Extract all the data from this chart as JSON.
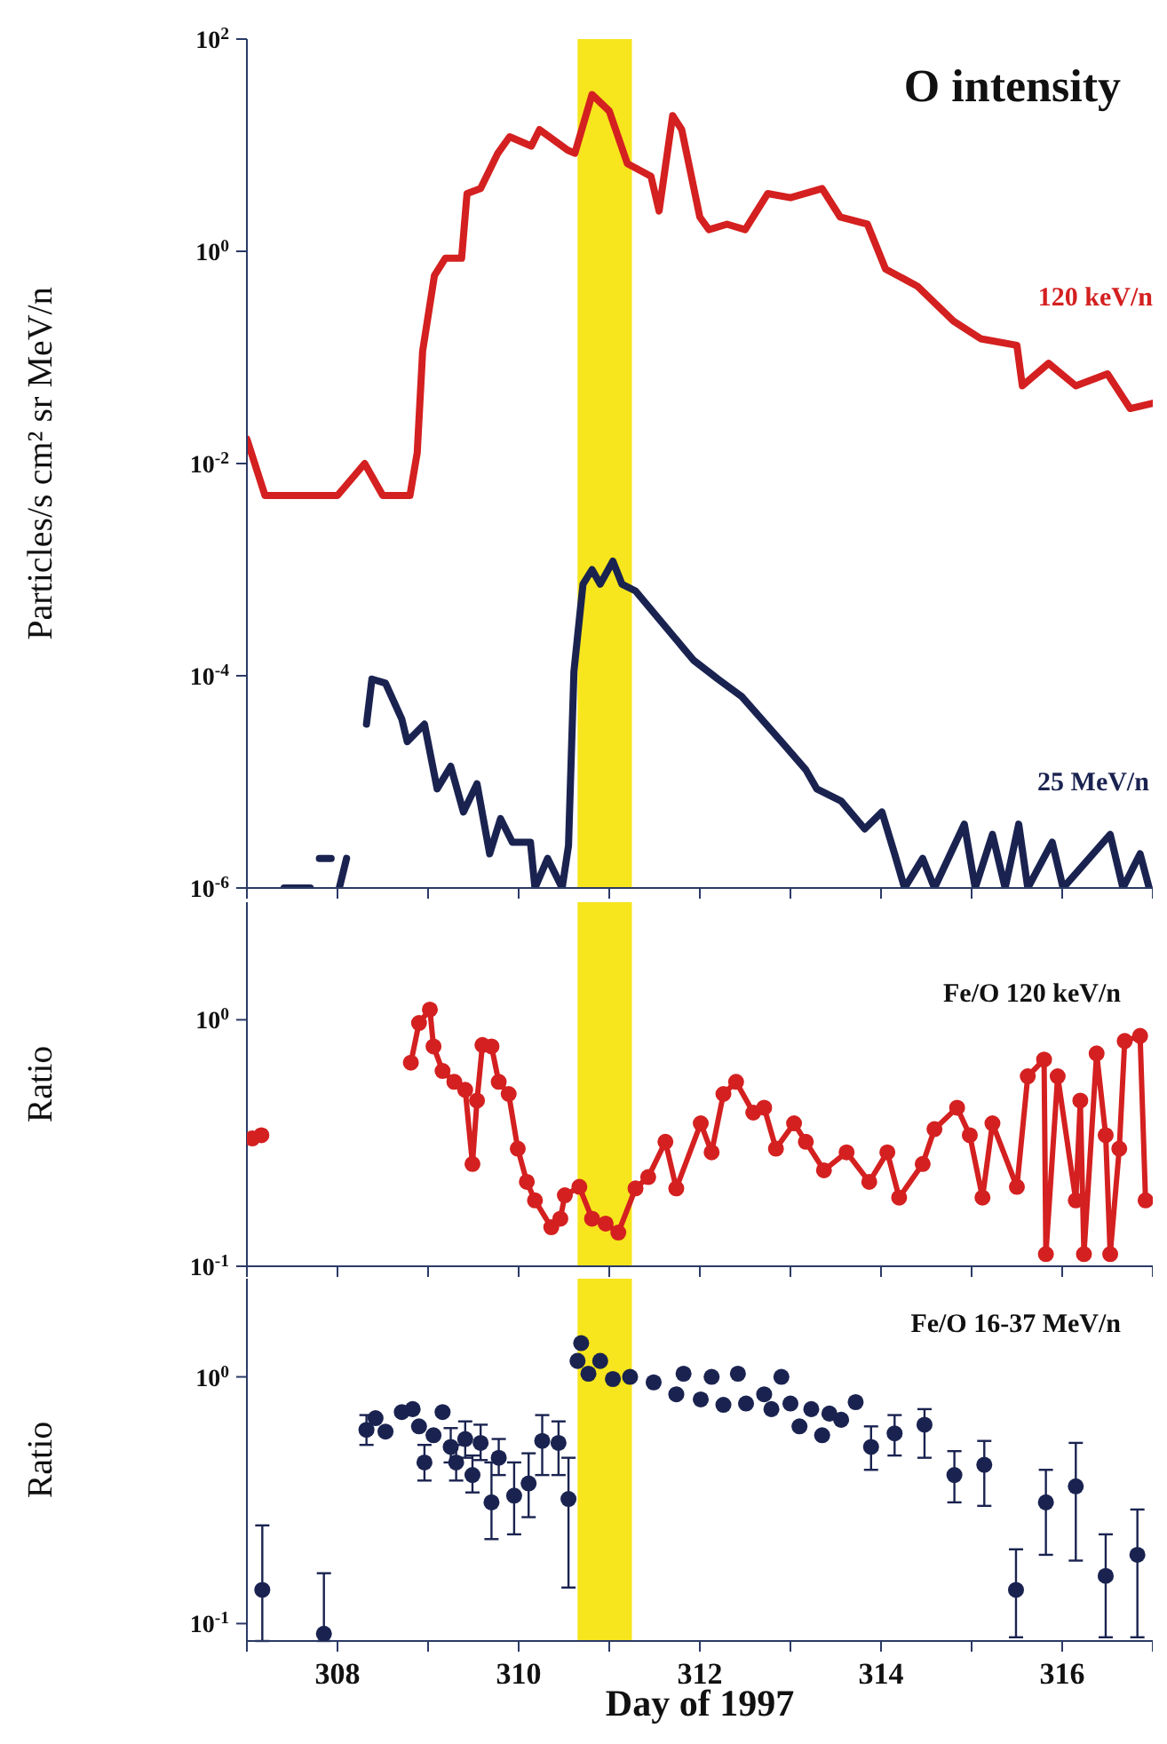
{
  "chart_data": [
    {
      "type": "line",
      "title": "O intensity",
      "ylabel": "Particles/s cm² sr MeV/n",
      "log": "y",
      "xlim": [
        307,
        317
      ],
      "xticks": [
        {
          "value": 307,
          "label": null
        },
        308,
        {
          "value": 309,
          "label": null
        },
        310,
        {
          "value": 311,
          "label": null
        },
        312,
        {
          "value": 313,
          "label": null
        },
        314,
        {
          "value": 315,
          "label": null
        },
        316,
        {
          "value": 317,
          "label": null
        }
      ],
      "tick_labels": "y",
      "ylim": [
        1e-06,
        100
      ],
      "yticks": [
        {
          "value": 1e-06,
          "label": "10$^{-6}$"
        },
        {
          "value": 0.0001,
          "label": "10$^{-4}$"
        },
        {
          "value": 0.01,
          "label": "10$^{-2}$"
        },
        {
          "value": 1,
          "label": "10$^{0}$"
        },
        {
          "value": 100,
          "label": "10$^{2}$"
        }
      ],
      "marker": "none",
      "line_style": "solid",
      "bands": [
        {
          "axis": "x",
          "from": 310.65,
          "to": 311.25,
          "color": "#f7e51e"
        }
      ],
      "series": [
        {
          "name": "120 keV/n",
          "color": "#d42020",
          "x": [
            307.0,
            307.2,
            307.5,
            308.0,
            308.3,
            308.5,
            308.8,
            308.88,
            308.94,
            309.07,
            309.19,
            309.37,
            309.43,
            309.58,
            309.77,
            309.9,
            310.14,
            310.23,
            310.54,
            310.62,
            310.81,
            311.0,
            311.2,
            311.46,
            311.55,
            311.7,
            311.8,
            312.0,
            312.1,
            312.3,
            312.5,
            312.75,
            313.0,
            313.35,
            313.55,
            313.85,
            314.05,
            314.4,
            314.8,
            315.1,
            315.5,
            315.56,
            315.85,
            316.15,
            316.5,
            316.75,
            317.0
          ],
          "values": [
            0.017,
            0.005,
            0.005,
            0.005,
            0.01,
            0.005,
            0.005,
            0.0126,
            0.115,
            0.59,
            0.86,
            0.86,
            3.5,
            3.9,
            8.4,
            12,
            9.8,
            14,
            9,
            8.4,
            30,
            21,
            6.7,
            5.1,
            2.4,
            19,
            14,
            2.1,
            1.6,
            1.8,
            1.6,
            3.5,
            3.2,
            3.9,
            2.1,
            1.8,
            0.68,
            0.47,
            0.22,
            0.15,
            0.13,
            0.054,
            0.088,
            0.054,
            0.07,
            0.033,
            0.037
          ]
        },
        {
          "name": "25 MeV/n",
          "color": "#1a2350",
          "x": [
            307.41,
            307.7,
            307.75,
            307.8,
            307.93,
            307.99,
            308.02,
            308.1,
            308.2,
            308.32,
            308.38,
            308.53,
            308.71,
            308.77,
            308.96,
            309.1,
            309.25,
            309.39,
            309.54,
            309.68,
            309.8,
            309.93,
            310.13,
            310.18,
            310.32,
            310.48,
            310.55,
            310.61,
            310.71,
            310.81,
            310.9,
            311.04,
            311.14,
            311.29,
            311.62,
            311.93,
            312.2,
            312.46,
            312.9,
            313.17,
            313.29,
            313.56,
            313.82,
            314.01,
            314.15,
            314.26,
            314.46,
            314.59,
            314.92,
            315.04,
            315.23,
            315.37,
            315.52,
            315.62,
            315.89,
            316.01,
            316.53,
            316.67,
            316.86,
            316.96
          ],
          "values": [
            1e-06,
            1e-06,
            null,
            1.9e-06,
            1.9e-06,
            null,
            1e-06,
            1.9e-06,
            null,
            3.5e-05,
            9.3e-05,
            8.5e-05,
            3.9e-05,
            2.4e-05,
            3.5e-05,
            8.6e-06,
            1.4e-05,
            5.2e-06,
            9.6e-06,
            2.1e-06,
            4.5e-06,
            2.7e-06,
            2.7e-06,
            1e-06,
            1.9e-06,
            1e-06,
            2.5e-06,
            0.00011,
            0.00073,
            0.001,
            0.00073,
            0.0012,
            0.00073,
            0.00063,
            0.00029,
            0.00014,
            9.3e-05,
            6.4e-05,
            2.4e-05,
            1.3e-05,
            8.6e-06,
            6.6e-06,
            3.6e-06,
            5.2e-06,
            2.1e-06,
            1e-06,
            1.9e-06,
            1e-06,
            4e-06,
            1e-06,
            3.2e-06,
            1e-06,
            4e-06,
            1e-06,
            2.7e-06,
            1e-06,
            3.2e-06,
            1e-06,
            2.1e-06,
            1e-06
          ]
        }
      ]
    },
    {
      "type": "line",
      "title": "Fe/O 120 keV/n",
      "ylabel": "Ratio",
      "log": "y",
      "xlim": [
        307,
        317
      ],
      "xticks": [
        {
          "value": 307,
          "label": null
        },
        308,
        {
          "value": 309,
          "label": null
        },
        310,
        {
          "value": 311,
          "label": null
        },
        312,
        {
          "value": 313,
          "label": null
        },
        314,
        {
          "value": 315,
          "label": null
        },
        316,
        {
          "value": 317,
          "label": null
        }
      ],
      "tick_labels": "y",
      "ylim": [
        0.1,
        3
      ],
      "yticks": [
        {
          "value": 0.1,
          "label": "10$^{-1}$"
        },
        {
          "value": 1,
          "label": "10$^{0}$"
        }
      ],
      "marker": "circle",
      "line_style": "solid",
      "bands": [
        {
          "axis": "x",
          "from": 310.65,
          "to": 311.25,
          "color": "#f7e51e"
        }
      ],
      "series": [
        {
          "color": "#d42020",
          "x": [
            307.06,
            307.16,
            307.2,
            308.81,
            308.9,
            309.02,
            309.06,
            309.16,
            309.29,
            309.41,
            309.49,
            309.54,
            309.6,
            309.7,
            309.78,
            309.89,
            309.99,
            310.09,
            310.18,
            310.36,
            310.46,
            310.51,
            310.67,
            310.81,
            310.96,
            311.1,
            311.29,
            311.43,
            311.62,
            311.74,
            312.01,
            312.13,
            312.26,
            312.4,
            312.59,
            312.71,
            312.84,
            313.04,
            313.17,
            313.37,
            313.62,
            313.87,
            314.07,
            314.2,
            314.46,
            314.59,
            314.84,
            314.98,
            315.12,
            315.23,
            315.5,
            315.62,
            315.8,
            315.82,
            315.95,
            316.15,
            316.2,
            316.24,
            316.38,
            316.48,
            316.53,
            316.63,
            316.69,
            316.86,
            316.92
          ],
          "values": [
            0.33,
            0.34,
            null,
            0.67,
            0.97,
            1.1,
            0.78,
            0.62,
            0.56,
            0.52,
            0.26,
            0.47,
            0.79,
            0.78,
            0.56,
            0.5,
            0.3,
            0.22,
            0.185,
            0.144,
            0.156,
            0.194,
            0.21,
            0.156,
            0.149,
            0.137,
            0.207,
            0.23,
            0.32,
            0.207,
            0.38,
            0.29,
            0.5,
            0.56,
            0.42,
            0.44,
            0.3,
            0.38,
            0.32,
            0.245,
            0.29,
            0.22,
            0.29,
            0.19,
            0.26,
            0.36,
            0.44,
            0.34,
            0.19,
            0.38,
            0.21,
            0.59,
            0.69,
            0.112,
            0.59,
            0.185,
            0.47,
            0.112,
            0.73,
            0.34,
            0.112,
            0.3,
            0.82,
            0.86,
            0.185
          ]
        }
      ]
    },
    {
      "type": "scatter",
      "title": "Fe/O 16-37 MeV/n",
      "ylabel": "Ratio",
      "xlabel": "Day of 1997",
      "log": "y",
      "xlim": [
        307,
        317
      ],
      "xticks": [
        {
          "value": 307,
          "label": null
        },
        308,
        {
          "value": 309,
          "label": null
        },
        310,
        {
          "value": 311,
          "label": null
        },
        312,
        {
          "value": 313,
          "label": null
        },
        314,
        {
          "value": 315,
          "label": null
        },
        316,
        {
          "value": 317,
          "label": null
        }
      ],
      "ylim": [
        0.085,
        2.5
      ],
      "yticks": [
        {
          "value": 0.1,
          "label": "10$^{-1}$"
        },
        {
          "value": 1,
          "label": "10$^{0}$"
        }
      ],
      "marker": "circle",
      "bands": [
        {
          "axis": "x",
          "from": 310.65,
          "to": 311.25,
          "color": "#f7e51e"
        }
      ],
      "series": [
        {
          "color": "#1a2350",
          "x": [
            307.17,
            307.85,
            308.32,
            308.42,
            308.53,
            308.71,
            308.83,
            308.9,
            308.96,
            309.06,
            309.16,
            309.25,
            309.31,
            309.41,
            309.49,
            309.58,
            309.7,
            309.78,
            309.95,
            310.11,
            310.26,
            310.44,
            310.55,
            310.65,
            310.69,
            310.77,
            310.9,
            311.04,
            311.23,
            311.49,
            311.74,
            311.82,
            312.01,
            312.13,
            312.26,
            312.42,
            312.51,
            312.71,
            312.79,
            312.9,
            313.0,
            313.1,
            313.23,
            313.35,
            313.43,
            313.56,
            313.72,
            313.89,
            314.15,
            314.48,
            314.81,
            315.14,
            315.49,
            315.82,
            316.15,
            316.48,
            316.83
          ],
          "values": [
            0.137,
            0.091,
            0.61,
            0.68,
            0.6,
            0.72,
            0.74,
            0.63,
            0.45,
            0.58,
            0.72,
            0.52,
            0.45,
            0.56,
            0.4,
            0.54,
            0.31,
            0.47,
            0.33,
            0.37,
            0.55,
            0.54,
            0.32,
            1.16,
            1.37,
            1.03,
            1.16,
            0.98,
            1.0,
            0.95,
            0.85,
            1.03,
            0.81,
            1.0,
            0.77,
            1.03,
            0.78,
            0.85,
            0.74,
            1.0,
            0.78,
            0.63,
            0.74,
            0.58,
            0.71,
            0.67,
            0.79,
            0.52,
            0.59,
            0.64,
            0.4,
            0.44,
            0.137,
            0.31,
            0.36,
            0.156,
            0.19
          ],
          "errors": [
            [
              0.085,
              0.25
            ],
            [
              0.085,
              0.16
            ],
            [
              0.53,
              0.7
            ],
            null,
            null,
            null,
            null,
            null,
            [
              0.38,
              0.53
            ],
            null,
            null,
            [
              0.45,
              0.62
            ],
            [
              0.38,
              0.53
            ],
            [
              0.47,
              0.66
            ],
            [
              0.34,
              0.48
            ],
            [
              0.46,
              0.64
            ],
            [
              0.22,
              0.45
            ],
            [
              0.4,
              0.56
            ],
            [
              0.23,
              0.45
            ],
            [
              0.27,
              0.49
            ],
            [
              0.4,
              0.7
            ],
            [
              0.4,
              0.66
            ],
            [
              0.14,
              0.47
            ],
            null,
            null,
            null,
            null,
            null,
            null,
            null,
            null,
            null,
            null,
            null,
            null,
            null,
            null,
            null,
            null,
            null,
            null,
            null,
            null,
            null,
            null,
            null,
            null,
            [
              0.42,
              0.63
            ],
            [
              0.48,
              0.7
            ],
            [
              0.47,
              0.74
            ],
            [
              0.31,
              0.5
            ],
            [
              0.3,
              0.55
            ],
            [
              0.088,
              0.2
            ],
            [
              0.19,
              0.42
            ],
            [
              0.18,
              0.54
            ],
            [
              0.088,
              0.23
            ],
            [
              0.088,
              0.29
            ]
          ]
        }
      ]
    }
  ]
}
